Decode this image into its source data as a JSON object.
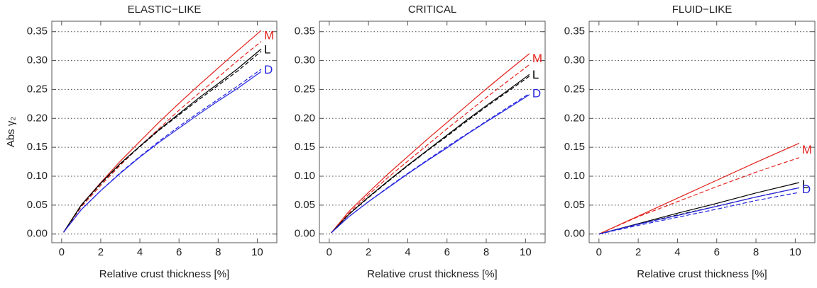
{
  "chart_data": [
    {
      "type": "line",
      "title": "ELASTIC−LIKE",
      "ylabel": "Abs γ₂",
      "xlabel": "Relative crust thickness [%]",
      "x": [
        0.1,
        1,
        2,
        3,
        4,
        5,
        6,
        7,
        8,
        9,
        10.2
      ],
      "series": [
        {
          "name": "M",
          "color": "#e3211c",
          "values": [
            0.003,
            0.05,
            0.089,
            0.126,
            0.16,
            0.194,
            0.226,
            0.257,
            0.287,
            0.317,
            0.352
          ]
        },
        {
          "color": "#e3211c",
          "dash": true,
          "values": [
            0.003,
            0.047,
            0.084,
            0.119,
            0.152,
            0.183,
            0.214,
            0.243,
            0.271,
            0.3,
            0.333
          ]
        },
        {
          "name": "L",
          "color": "#000000",
          "values": [
            0.003,
            0.05,
            0.088,
            0.122,
            0.152,
            0.181,
            0.208,
            0.235,
            0.26,
            0.286,
            0.32
          ]
        },
        {
          "color": "#000000",
          "dash": true,
          "values": [
            0.003,
            0.049,
            0.087,
            0.121,
            0.151,
            0.18,
            0.206,
            0.232,
            0.257,
            0.282,
            0.316
          ]
        },
        {
          "name": "D",
          "color": "#2424e0",
          "values": [
            0.003,
            0.042,
            0.075,
            0.105,
            0.133,
            0.159,
            0.183,
            0.207,
            0.23,
            0.252,
            0.281
          ]
        },
        {
          "color": "#2424e0",
          "dash": true,
          "values": [
            0.003,
            0.042,
            0.075,
            0.106,
            0.134,
            0.161,
            0.186,
            0.21,
            0.233,
            0.256,
            0.285
          ]
        }
      ],
      "xlim": [
        -0.5,
        11
      ],
      "ylim": [
        -0.015,
        0.368
      ],
      "xticks": [
        0,
        2,
        4,
        6,
        8,
        10
      ],
      "yticks": [
        {
          "value": 0,
          "label": "0.00"
        },
        {
          "value": 0.05,
          "label": "0.05"
        },
        {
          "value": 0.1,
          "label": "0.10"
        },
        {
          "value": 0.15,
          "label": "0.15"
        },
        {
          "value": 0.2,
          "label": "0.20"
        },
        {
          "value": 0.25,
          "label": "0.25"
        },
        {
          "value": 0.3,
          "label": "0.30"
        },
        {
          "value": 0.35,
          "label": "0.35"
        }
      ],
      "grid": true
    },
    {
      "type": "line",
      "title": "CRITICAL",
      "xlabel": "Relative crust thickness [%]",
      "x": [
        0.1,
        1,
        2,
        3,
        4,
        5,
        6,
        7,
        8,
        9,
        10.2
      ],
      "series": [
        {
          "name": "M",
          "color": "#e3211c",
          "values": [
            0.002,
            0.039,
            0.072,
            0.104,
            0.134,
            0.164,
            0.193,
            0.222,
            0.251,
            0.279,
            0.312
          ]
        },
        {
          "color": "#e3211c",
          "dash": true,
          "values": [
            0.002,
            0.036,
            0.068,
            0.098,
            0.126,
            0.154,
            0.182,
            0.209,
            0.236,
            0.262,
            0.293
          ]
        },
        {
          "name": "L",
          "color": "#000000",
          "values": [
            0.002,
            0.034,
            0.064,
            0.092,
            0.119,
            0.145,
            0.171,
            0.197,
            0.222,
            0.246,
            0.276
          ]
        },
        {
          "color": "#000000",
          "dash": true,
          "values": [
            0.002,
            0.034,
            0.063,
            0.091,
            0.118,
            0.144,
            0.169,
            0.195,
            0.22,
            0.244,
            0.273
          ]
        },
        {
          "name": "D",
          "color": "#2424e0",
          "values": [
            0.002,
            0.03,
            0.056,
            0.08,
            0.104,
            0.127,
            0.149,
            0.172,
            0.194,
            0.215,
            0.241
          ]
        },
        {
          "color": "#2424e0",
          "dash": true,
          "values": [
            0.002,
            0.03,
            0.056,
            0.081,
            0.105,
            0.128,
            0.151,
            0.173,
            0.195,
            0.217,
            0.243
          ]
        }
      ],
      "xlim": [
        -0.5,
        11
      ],
      "ylim": [
        -0.015,
        0.368
      ],
      "xticks": [
        0,
        2,
        4,
        6,
        8,
        10
      ],
      "yticks": [
        {
          "value": 0,
          "label": "0.00"
        },
        {
          "value": 0.05,
          "label": "0.05"
        },
        {
          "value": 0.1,
          "label": "0.10"
        },
        {
          "value": 0.15,
          "label": "0.15"
        },
        {
          "value": 0.2,
          "label": "0.20"
        },
        {
          "value": 0.25,
          "label": "0.25"
        },
        {
          "value": 0.3,
          "label": "0.30"
        },
        {
          "value": 0.35,
          "label": "0.35"
        }
      ],
      "grid": true
    },
    {
      "type": "line",
      "title": "FLUID−LIKE",
      "xlabel": "Relative crust thickness [%]",
      "x": [
        0,
        2,
        4,
        6,
        8,
        10.2
      ],
      "series": [
        {
          "name": "M",
          "color": "#e3211c",
          "values": [
            0,
            0.031,
            0.062,
            0.093,
            0.124,
            0.157
          ]
        },
        {
          "color": "#e3211c",
          "dash": true,
          "values": [
            0,
            0.03,
            0.056,
            0.082,
            0.107,
            0.132
          ]
        },
        {
          "name": "L",
          "color": "#000000",
          "values": [
            0,
            0.018,
            0.036,
            0.053,
            0.071,
            0.089
          ]
        },
        {
          "color": "#000000",
          "dash": true,
          "values": [
            0,
            0.017,
            0.033,
            0.048,
            0.064,
            0.08
          ]
        },
        {
          "name": "D",
          "color": "#2424e0",
          "values": [
            0,
            0.017,
            0.032,
            0.048,
            0.064,
            0.08
          ]
        },
        {
          "color": "#2424e0",
          "dash": true,
          "values": [
            0,
            0.015,
            0.029,
            0.043,
            0.058,
            0.072
          ]
        }
      ],
      "xlim": [
        -0.5,
        11
      ],
      "ylim": [
        -0.015,
        0.368
      ],
      "xticks": [
        0,
        2,
        4,
        6,
        8,
        10
      ],
      "yticks": [
        {
          "value": 0,
          "label": "0.00"
        },
        {
          "value": 0.05,
          "label": "0.05"
        },
        {
          "value": 0.1,
          "label": "0.10"
        },
        {
          "value": 0.15,
          "label": "0.15"
        },
        {
          "value": 0.2,
          "label": "0.20"
        },
        {
          "value": 0.25,
          "label": "0.25"
        },
        {
          "value": 0.3,
          "label": "0.30"
        },
        {
          "value": 0.35,
          "label": "0.35"
        }
      ],
      "grid": true
    }
  ]
}
